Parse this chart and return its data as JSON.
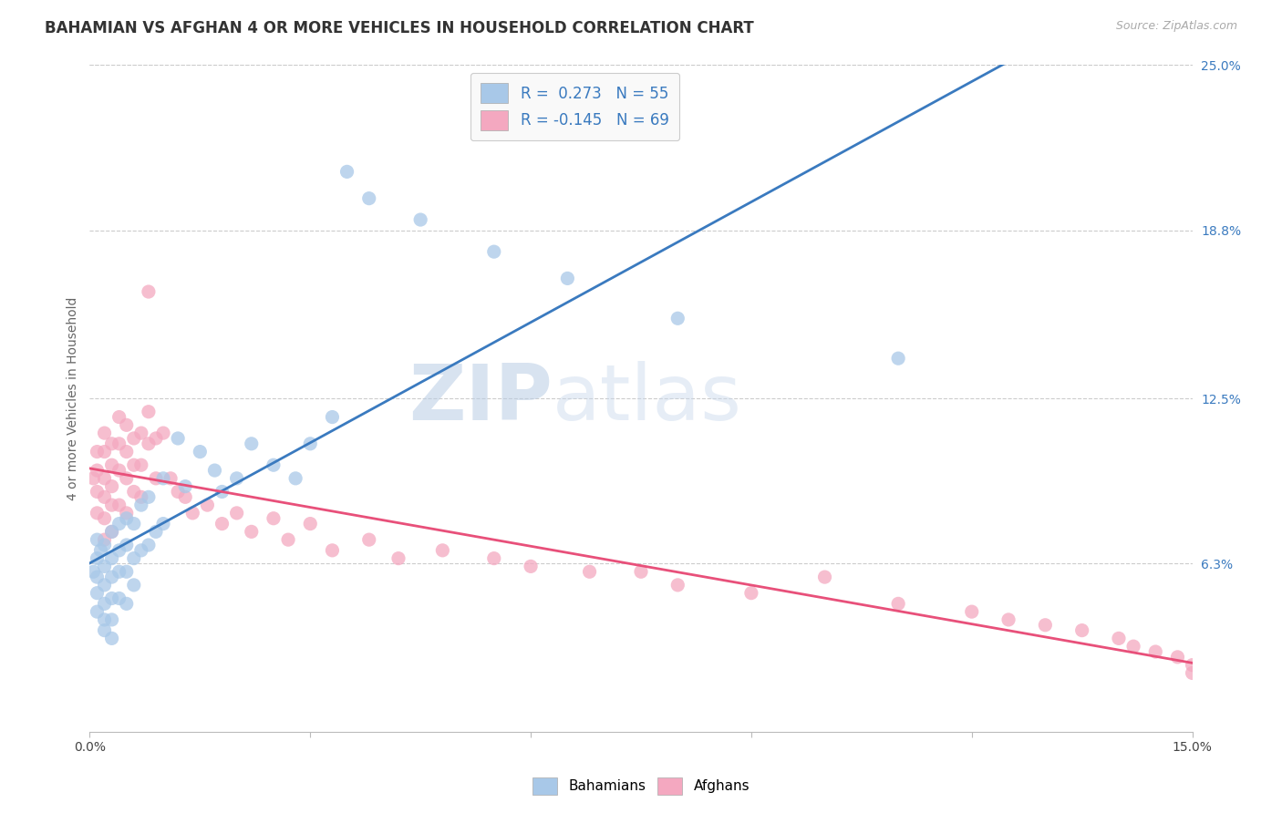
{
  "title": "BAHAMIAN VS AFGHAN 4 OR MORE VEHICLES IN HOUSEHOLD CORRELATION CHART",
  "source": "Source: ZipAtlas.com",
  "ylabel": "4 or more Vehicles in Household",
  "x_min": 0.0,
  "x_max": 0.15,
  "y_min": 0.0,
  "y_max": 0.25,
  "bahamian_color": "#a8c8e8",
  "afghan_color": "#f4a8c0",
  "blue_line_color": "#3a7abf",
  "pink_line_color": "#e8507a",
  "legend_bahamian_label": "R =  0.273   N = 55",
  "legend_afghan_label": "R = -0.145   N = 69",
  "watermark_zip": "ZIP",
  "watermark_atlas": "atlas",
  "background_color": "#ffffff",
  "grid_color": "#cccccc",
  "title_fontsize": 12,
  "axis_label_fontsize": 10,
  "tick_fontsize": 10,
  "bahamian_x": [
    0.0005,
    0.001,
    0.001,
    0.001,
    0.001,
    0.001,
    0.0015,
    0.002,
    0.002,
    0.002,
    0.002,
    0.002,
    0.002,
    0.003,
    0.003,
    0.003,
    0.003,
    0.003,
    0.003,
    0.004,
    0.004,
    0.004,
    0.004,
    0.005,
    0.005,
    0.005,
    0.005,
    0.006,
    0.006,
    0.006,
    0.007,
    0.007,
    0.008,
    0.008,
    0.009,
    0.01,
    0.01,
    0.012,
    0.013,
    0.015,
    0.017,
    0.018,
    0.02,
    0.022,
    0.025,
    0.028,
    0.03,
    0.033,
    0.035,
    0.038,
    0.045,
    0.055,
    0.065,
    0.08,
    0.11
  ],
  "bahamian_y": [
    0.06,
    0.072,
    0.065,
    0.058,
    0.052,
    0.045,
    0.068,
    0.07,
    0.062,
    0.055,
    0.048,
    0.042,
    0.038,
    0.075,
    0.065,
    0.058,
    0.05,
    0.042,
    0.035,
    0.078,
    0.068,
    0.06,
    0.05,
    0.08,
    0.07,
    0.06,
    0.048,
    0.078,
    0.065,
    0.055,
    0.085,
    0.068,
    0.088,
    0.07,
    0.075,
    0.095,
    0.078,
    0.11,
    0.092,
    0.105,
    0.098,
    0.09,
    0.095,
    0.108,
    0.1,
    0.095,
    0.108,
    0.118,
    0.21,
    0.2,
    0.192,
    0.18,
    0.17,
    0.155,
    0.14
  ],
  "afghan_x": [
    0.0005,
    0.001,
    0.001,
    0.001,
    0.001,
    0.002,
    0.002,
    0.002,
    0.002,
    0.002,
    0.002,
    0.003,
    0.003,
    0.003,
    0.003,
    0.003,
    0.004,
    0.004,
    0.004,
    0.004,
    0.005,
    0.005,
    0.005,
    0.005,
    0.006,
    0.006,
    0.006,
    0.007,
    0.007,
    0.007,
    0.008,
    0.008,
    0.008,
    0.009,
    0.009,
    0.01,
    0.011,
    0.012,
    0.013,
    0.014,
    0.016,
    0.018,
    0.02,
    0.022,
    0.025,
    0.027,
    0.03,
    0.033,
    0.038,
    0.042,
    0.048,
    0.055,
    0.06,
    0.068,
    0.075,
    0.08,
    0.09,
    0.1,
    0.11,
    0.12,
    0.125,
    0.13,
    0.135,
    0.14,
    0.142,
    0.145,
    0.148,
    0.15,
    0.15
  ],
  "afghan_y": [
    0.095,
    0.105,
    0.098,
    0.09,
    0.082,
    0.112,
    0.105,
    0.095,
    0.088,
    0.08,
    0.072,
    0.108,
    0.1,
    0.092,
    0.085,
    0.075,
    0.118,
    0.108,
    0.098,
    0.085,
    0.115,
    0.105,
    0.095,
    0.082,
    0.11,
    0.1,
    0.09,
    0.112,
    0.1,
    0.088,
    0.165,
    0.12,
    0.108,
    0.11,
    0.095,
    0.112,
    0.095,
    0.09,
    0.088,
    0.082,
    0.085,
    0.078,
    0.082,
    0.075,
    0.08,
    0.072,
    0.078,
    0.068,
    0.072,
    0.065,
    0.068,
    0.065,
    0.062,
    0.06,
    0.06,
    0.055,
    0.052,
    0.058,
    0.048,
    0.045,
    0.042,
    0.04,
    0.038,
    0.035,
    0.032,
    0.03,
    0.028,
    0.025,
    0.022
  ]
}
